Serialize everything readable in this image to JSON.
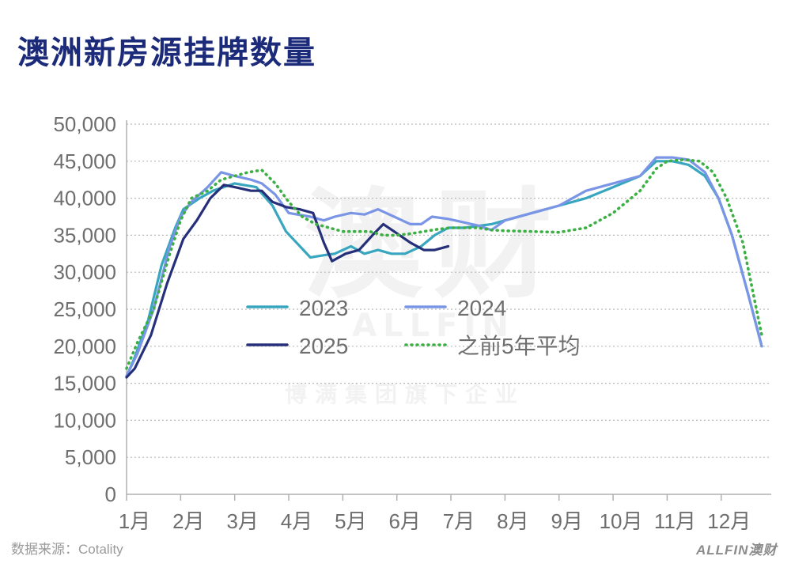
{
  "title": "澳洲新房源挂牌数量",
  "source": "数据来源：Cotality",
  "brand": "ALLFIN澳财",
  "watermark": {
    "main": "澳财",
    "sub": "ALLFIN",
    "tagline": "博满集团旗下企业"
  },
  "chart_data": {
    "type": "line",
    "title": "澳洲新房源挂牌数量",
    "xlabel": "",
    "ylabel": "",
    "ylim": [
      0,
      50000
    ],
    "xlim": [
      1,
      12.75
    ],
    "yticks": [
      "0",
      "5,000",
      "10,000",
      "15,000",
      "20,000",
      "25,000",
      "30,000",
      "35,000",
      "40,000",
      "45,000",
      "50,000"
    ],
    "xticks": [
      "1月",
      "2月",
      "3月",
      "4月",
      "5月",
      "6月",
      "7月",
      "8月",
      "9月",
      "10月",
      "11月",
      "12月"
    ],
    "grid": true,
    "legend_position": "center",
    "series": [
      {
        "name": "2023",
        "color": "#38a6bf",
        "style": "solid",
        "x": [
          1.0,
          1.15,
          1.4,
          1.65,
          1.9,
          2.05,
          2.35,
          2.6,
          3.0,
          3.4,
          3.7,
          3.95,
          4.4,
          4.65,
          4.85,
          5.15,
          5.4,
          5.65,
          5.9,
          6.15,
          6.45,
          6.7,
          6.95,
          7.25,
          7.75,
          8.0,
          8.5,
          9.0,
          9.5,
          10.0,
          10.5,
          10.8,
          11.1,
          11.4,
          11.7,
          11.95,
          12.2,
          12.5,
          12.75
        ],
        "y": [
          15900,
          18500,
          23500,
          31000,
          36000,
          38500,
          40000,
          41000,
          42000,
          41500,
          39000,
          35500,
          32000,
          32300,
          32500,
          33500,
          32500,
          33000,
          32500,
          32500,
          33500,
          35000,
          36000,
          36000,
          36500,
          37000,
          38000,
          39000,
          40000,
          41500,
          43000,
          45000,
          45000,
          44500,
          43000,
          40000,
          35000,
          27000,
          20000
        ]
      },
      {
        "name": "2024",
        "color": "#7b95e6",
        "style": "solid",
        "x": [
          1.0,
          1.2,
          1.5,
          1.8,
          2.0,
          2.2,
          2.5,
          2.75,
          3.0,
          3.3,
          3.5,
          3.75,
          4.0,
          4.4,
          4.65,
          4.85,
          5.15,
          5.4,
          5.65,
          5.95,
          6.25,
          6.45,
          6.65,
          6.95,
          7.2,
          7.5,
          7.75,
          8.0,
          8.5,
          9.0,
          9.5,
          10.0,
          10.5,
          10.8,
          11.1,
          11.4,
          11.7,
          11.95,
          12.2,
          12.5,
          12.75
        ],
        "y": [
          16000,
          19000,
          25000,
          33500,
          37500,
          39500,
          41500,
          43500,
          43000,
          42500,
          42000,
          40500,
          38000,
          37500,
          37000,
          37500,
          38000,
          37800,
          38500,
          37500,
          36500,
          36500,
          37500,
          37200,
          36800,
          36300,
          35700,
          37000,
          38000,
          39000,
          41000,
          42000,
          43000,
          45500,
          45500,
          45200,
          43500,
          40000,
          35000,
          27000,
          20000
        ]
      },
      {
        "name": "2025",
        "color": "#26307a",
        "style": "solid",
        "x": [
          1.0,
          1.15,
          1.45,
          1.75,
          2.05,
          2.3,
          2.55,
          2.8,
          3.0,
          3.3,
          3.5,
          3.7,
          3.95,
          4.2,
          4.45,
          4.65,
          4.8,
          5.05,
          5.3,
          5.55,
          5.75,
          5.95,
          6.25,
          6.5,
          6.7,
          6.95
        ],
        "y": [
          15800,
          17000,
          21500,
          28500,
          34500,
          37000,
          40000,
          41800,
          41500,
          41000,
          41000,
          39500,
          38800,
          38500,
          38000,
          34000,
          31500,
          32500,
          33000,
          35000,
          36500,
          35500,
          34000,
          33000,
          33000,
          33500
        ]
      },
      {
        "name": "之前5年平均",
        "color": "#3cb044",
        "style": "dotted",
        "x": [
          1.0,
          1.2,
          1.5,
          1.8,
          2.0,
          2.2,
          2.5,
          2.75,
          3.0,
          3.25,
          3.5,
          3.75,
          4.0,
          4.25,
          4.5,
          4.75,
          5.0,
          5.25,
          5.5,
          5.75,
          6.0,
          6.25,
          6.5,
          6.75,
          7.0,
          7.25,
          7.5,
          7.75,
          8.0,
          8.5,
          9.0,
          9.5,
          10.0,
          10.5,
          10.8,
          11.0,
          11.3,
          11.6,
          11.85,
          12.1,
          12.4,
          12.75
        ],
        "y": [
          17000,
          20500,
          25000,
          32500,
          37000,
          40000,
          41000,
          42500,
          43000,
          43500,
          43800,
          42000,
          39500,
          37500,
          36500,
          36000,
          35500,
          35500,
          35500,
          35000,
          35000,
          35200,
          35500,
          35800,
          36000,
          36000,
          36000,
          35700,
          35600,
          35500,
          35400,
          36000,
          38000,
          41000,
          44000,
          45000,
          45200,
          45000,
          43500,
          40000,
          34000,
          21500
        ]
      }
    ]
  }
}
